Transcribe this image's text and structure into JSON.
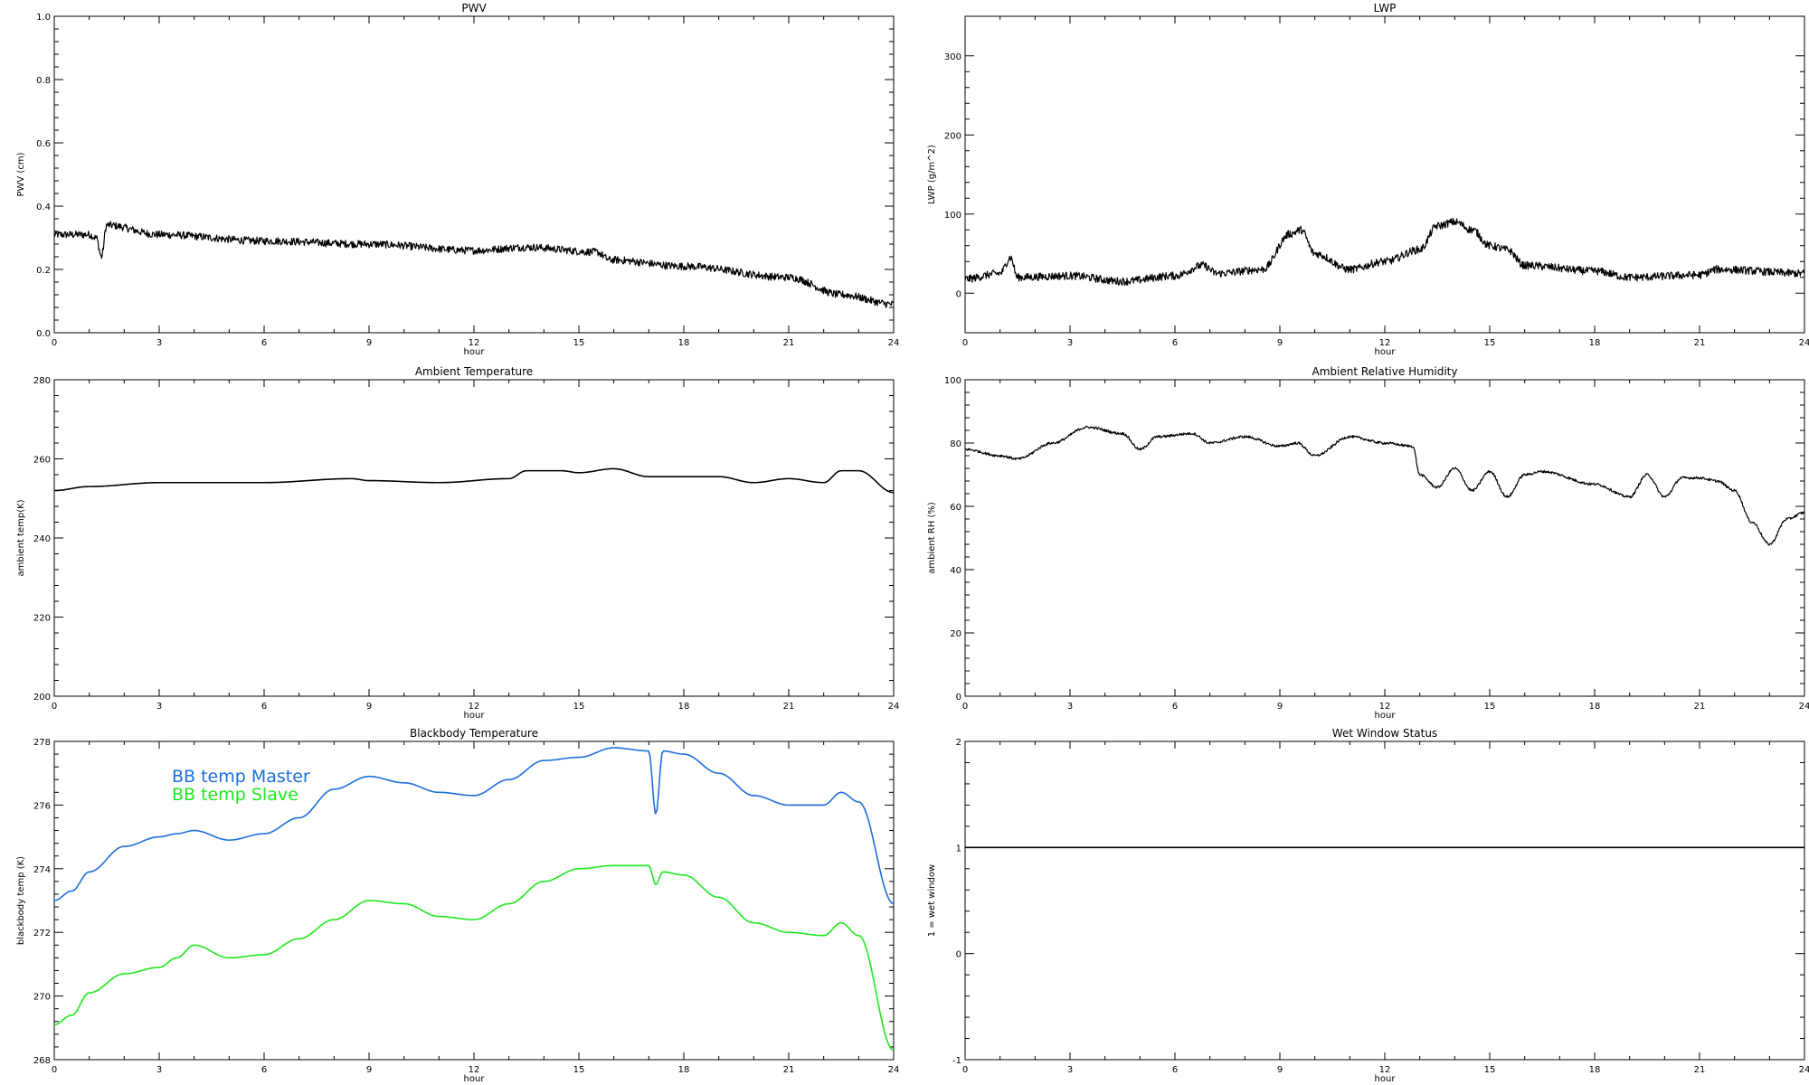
{
  "chart_data": [
    {
      "id": "pwv",
      "type": "line",
      "title": "PWV",
      "xlabel": "hour",
      "ylabel": "PWV (cm)",
      "xlim": [
        0,
        24
      ],
      "ylim": [
        0,
        1.0
      ],
      "xticks": [
        0,
        3,
        6,
        9,
        12,
        15,
        18,
        21,
        24
      ],
      "yticks": [
        0.0,
        0.2,
        0.4,
        0.6,
        0.8,
        1.0
      ],
      "ytick_labels": [
        "0.0",
        "0.2",
        "0.4",
        "0.6",
        "0.8",
        "1.0"
      ],
      "grid": false,
      "series": [
        {
          "color": "#000000",
          "noise": 0.012,
          "x": [
            0,
            1,
            1.2,
            1.35,
            1.5,
            3,
            6,
            9,
            12,
            13.5,
            15.5,
            15.9,
            18,
            21,
            22.5,
            24
          ],
          "y": [
            0.31,
            0.31,
            0.3,
            0.24,
            0.34,
            0.31,
            0.29,
            0.28,
            0.26,
            0.27,
            0.255,
            0.23,
            0.21,
            0.175,
            0.12,
            0.09
          ]
        }
      ]
    },
    {
      "id": "lwp",
      "type": "scatter",
      "title": "LWP",
      "xlabel": "hour",
      "ylabel": "LWP (g/m^2)",
      "xlim": [
        0,
        24
      ],
      "ylim": [
        -50,
        350
      ],
      "xticks": [
        0,
        3,
        6,
        9,
        12,
        15,
        18,
        21,
        24
      ],
      "yticks": [
        0,
        100,
        200,
        300
      ],
      "ytick_labels": [
        "0",
        "100",
        "200",
        "300"
      ],
      "grid": false,
      "series": [
        {
          "color": "#000000",
          "noise": 5,
          "x": [
            0,
            1,
            1.3,
            1.5,
            3,
            4.5,
            6,
            6.8,
            7.2,
            8.5,
            9.3,
            9.6,
            10,
            11,
            12,
            13,
            13.5,
            14,
            14.5,
            15,
            15.5,
            16,
            18,
            19,
            21,
            21.5,
            24
          ],
          "y": [
            18,
            25,
            45,
            20,
            22,
            15,
            22,
            35,
            25,
            30,
            75,
            80,
            50,
            30,
            40,
            55,
            85,
            90,
            80,
            60,
            55,
            35,
            28,
            20,
            23,
            30,
            25
          ]
        }
      ]
    },
    {
      "id": "temp",
      "type": "line",
      "title": "Ambient Temperature",
      "xlabel": "hour",
      "ylabel": "ambient temp(K)",
      "xlim": [
        0,
        24
      ],
      "ylim": [
        200,
        280
      ],
      "xticks": [
        0,
        3,
        6,
        9,
        12,
        15,
        18,
        21,
        24
      ],
      "yticks": [
        200,
        220,
        240,
        260,
        280
      ],
      "ytick_labels": [
        "200",
        "220",
        "240",
        "260",
        "280"
      ],
      "grid": false,
      "series": [
        {
          "color": "#000000",
          "noise": 0,
          "x": [
            0,
            1,
            3,
            6,
            8.5,
            9,
            11,
            13,
            13.5,
            14.5,
            15,
            16,
            17,
            19,
            20,
            21,
            22,
            22.5,
            23,
            24
          ],
          "y": [
            252,
            253,
            254,
            254,
            255,
            254.5,
            254,
            255,
            257,
            257,
            256.5,
            257.5,
            255.5,
            255.5,
            254,
            255,
            254,
            257,
            257,
            251.5
          ]
        }
      ]
    },
    {
      "id": "rh",
      "type": "scatter",
      "title": "Ambient Relative Humidity",
      "xlabel": "hour",
      "ylabel": "ambient RH (%)",
      "xlim": [
        0,
        24
      ],
      "ylim": [
        0,
        100
      ],
      "xticks": [
        0,
        3,
        6,
        9,
        12,
        15,
        18,
        21,
        24
      ],
      "yticks": [
        0,
        20,
        40,
        60,
        80,
        100
      ],
      "ytick_labels": [
        "0",
        "20",
        "40",
        "60",
        "80",
        "100"
      ],
      "grid": false,
      "series": [
        {
          "color": "#000000",
          "noise": 0.4,
          "x": [
            0,
            1,
            1.5,
            2.5,
            3.5,
            4.5,
            5,
            5.5,
            6.5,
            7,
            8,
            9,
            9.5,
            10,
            11,
            12,
            12.8,
            13,
            13.5,
            14,
            14.5,
            15,
            15.5,
            16,
            16.5,
            18,
            19,
            19.5,
            20,
            20.5,
            21,
            21.5,
            22,
            22.5,
            23,
            23.5,
            24
          ],
          "y": [
            78,
            76,
            75,
            80,
            85,
            83,
            78,
            82,
            83,
            80,
            82,
            79,
            80,
            76,
            82,
            80,
            79,
            70,
            66,
            72,
            65,
            71,
            63,
            70,
            71,
            67,
            63,
            70,
            63,
            69,
            69,
            68,
            65,
            55,
            48,
            56,
            58
          ]
        }
      ]
    },
    {
      "id": "bb",
      "type": "line",
      "title": "Blackbody Temperature",
      "xlabel": "hour",
      "ylabel": "blackbody temp (K)",
      "xlim": [
        0,
        24
      ],
      "ylim": [
        268,
        278
      ],
      "xticks": [
        0,
        3,
        6,
        9,
        12,
        15,
        18,
        21,
        24
      ],
      "yticks": [
        268,
        270,
        272,
        274,
        276,
        278
      ],
      "ytick_labels": [
        "268",
        "270",
        "272",
        "274",
        "276",
        "278"
      ],
      "grid": false,
      "legend": "top-left",
      "series": [
        {
          "name": "BB temp Master",
          "color": "#1b6fdc",
          "noise": 0,
          "x": [
            0,
            0.5,
            1,
            2,
            3,
            3.5,
            4,
            5,
            6,
            7,
            8,
            9,
            10,
            11,
            12,
            13,
            14,
            15,
            16,
            17,
            17.2,
            17.4,
            18,
            19,
            20,
            21,
            22,
            22.5,
            23,
            24
          ],
          "y": [
            273.0,
            273.3,
            273.9,
            274.7,
            275.0,
            275.1,
            275.2,
            274.9,
            275.1,
            275.6,
            276.5,
            276.9,
            276.7,
            276.4,
            276.3,
            276.8,
            277.4,
            277.5,
            277.8,
            277.7,
            275.7,
            277.7,
            277.6,
            277.0,
            276.3,
            276.0,
            276.0,
            276.4,
            276.1,
            272.9
          ]
        },
        {
          "name": "BB temp Slave",
          "color": "#1ee81e",
          "noise": 0,
          "x": [
            0,
            0.5,
            1,
            2,
            3,
            3.5,
            4,
            5,
            6,
            7,
            8,
            9,
            10,
            11,
            12,
            13,
            14,
            15,
            16,
            17,
            17.2,
            17.4,
            18,
            19,
            20,
            21,
            22,
            22.5,
            23,
            24
          ],
          "y": [
            269.1,
            269.4,
            270.1,
            270.7,
            270.9,
            271.2,
            271.6,
            271.2,
            271.3,
            271.8,
            272.4,
            273.0,
            272.9,
            272.5,
            272.4,
            272.9,
            273.6,
            274.0,
            274.1,
            274.1,
            273.5,
            273.9,
            273.8,
            273.1,
            272.3,
            272.0,
            271.9,
            272.3,
            271.9,
            268.3
          ]
        }
      ]
    },
    {
      "id": "wet",
      "type": "line",
      "title": "Wet Window Status",
      "xlabel": "hour",
      "ylabel": "1 = wet window",
      "xlim": [
        0,
        24
      ],
      "ylim": [
        -1,
        2
      ],
      "xticks": [
        0,
        3,
        6,
        9,
        12,
        15,
        18,
        21,
        24
      ],
      "yticks": [
        -1,
        0,
        1,
        2
      ],
      "ytick_labels": [
        "-1",
        "0",
        "1",
        "2"
      ],
      "grid": false,
      "series": [
        {
          "color": "#000000",
          "noise": 0,
          "x": [
            0,
            24
          ],
          "y": [
            1,
            1
          ]
        }
      ]
    }
  ]
}
